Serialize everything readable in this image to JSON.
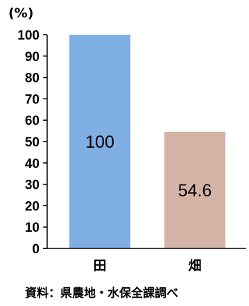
{
  "chart_data": {
    "type": "bar",
    "unit_label": "(%)",
    "categories": [
      "田",
      "畑"
    ],
    "values": [
      100,
      54.6
    ],
    "data_labels": [
      "100",
      "54.6"
    ],
    "colors": [
      "#7faee3",
      "#d5b3a6"
    ],
    "ylim": [
      0,
      100
    ],
    "ytick_step": 10,
    "grid": false,
    "source": "資料：県農地・水保全課調べ"
  }
}
